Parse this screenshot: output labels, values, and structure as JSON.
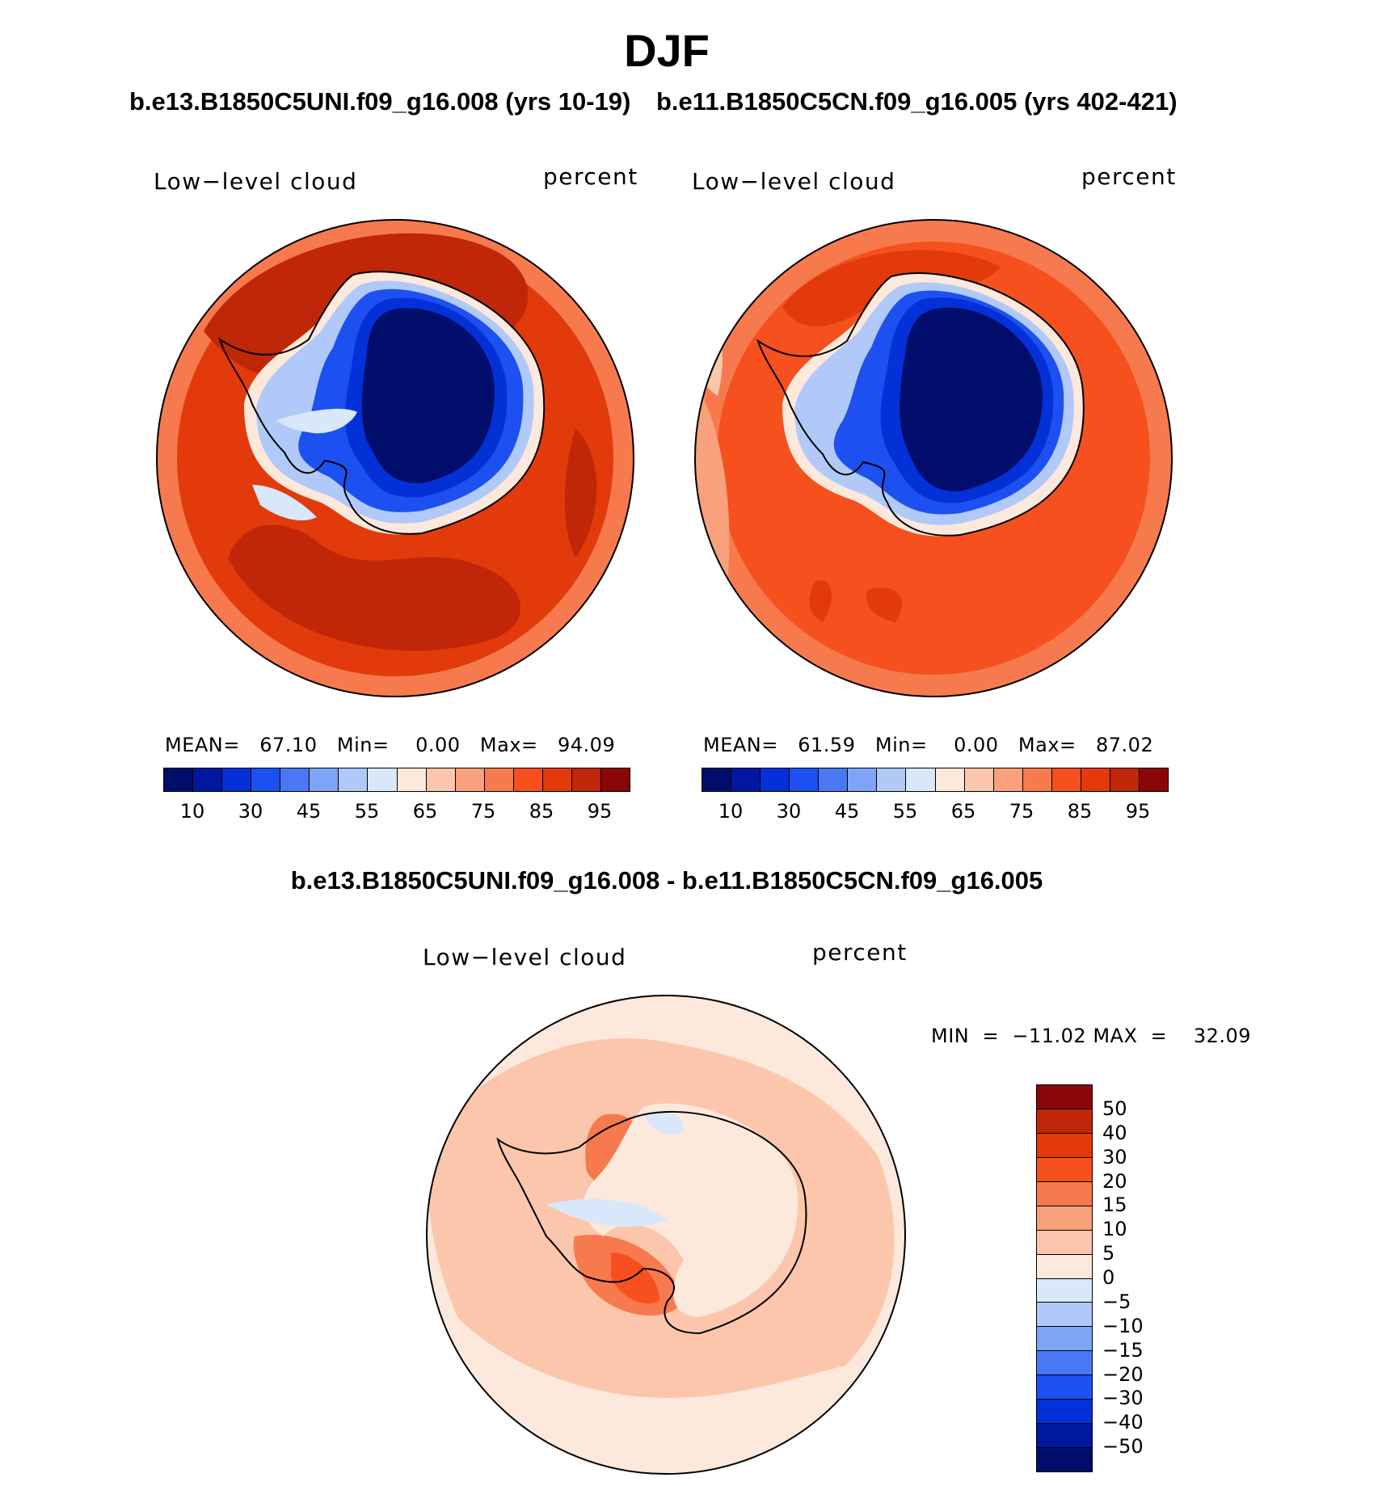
{
  "figure": {
    "title": "DJF",
    "variable_label": "Low−level cloud",
    "units_label": "percent"
  },
  "panels": [
    {
      "case_title": "b.e13.B1850C5UNI.f09_g16.008 (yrs 10-19)",
      "stats": {
        "mean": "67.10",
        "min": "0.00",
        "max": "94.09"
      },
      "colorbar": {
        "colors": [
          "#000d6b",
          "#0018a0",
          "#0430d8",
          "#1c50f0",
          "#4a78f5",
          "#7ea4f7",
          "#b0c9f8",
          "#d8e7f9",
          "#fde8dc",
          "#fbc6ac",
          "#f9a07c",
          "#f77a4e",
          "#f5501e",
          "#e23a0a",
          "#c02608",
          "#8a0707"
        ],
        "tick_labels": [
          "10",
          "30",
          "45",
          "55",
          "65",
          "75",
          "85",
          "95"
        ]
      }
    },
    {
      "case_title": "b.e11.B1850C5CN.f09_g16.005 (yrs 402-421)",
      "stats": {
        "mean": "61.59",
        "min": "0.00",
        "max": "87.02"
      },
      "colorbar": {
        "colors": [
          "#000d6b",
          "#0018a0",
          "#0430d8",
          "#1c50f0",
          "#4a78f5",
          "#7ea4f7",
          "#b0c9f8",
          "#d8e7f9",
          "#fde8dc",
          "#fbc6ac",
          "#f9a07c",
          "#f77a4e",
          "#f5501e",
          "#e23a0a",
          "#c02608",
          "#8a0707"
        ],
        "tick_labels": [
          "10",
          "30",
          "45",
          "55",
          "65",
          "75",
          "85",
          "95"
        ]
      }
    }
  ],
  "difference": {
    "title": "b.e13.B1850C5UNI.f09_g16.008 - b.e11.B1850C5CN.f09_g16.005",
    "min_label": "MIN",
    "max_label": "MAX",
    "min": "−11.02",
    "max": "32.09",
    "colorbar": {
      "colors_top_to_bottom": [
        "#8a0707",
        "#c02608",
        "#e23a0a",
        "#f5501e",
        "#f77a4e",
        "#f9a07c",
        "#fbc6ac",
        "#fde8dc",
        "#d8e7f9",
        "#b0c9f8",
        "#7ea4f7",
        "#4a78f5",
        "#1c50f0",
        "#0430d8",
        "#0018a0",
        "#000d6b"
      ],
      "tick_labels": [
        "50",
        "40",
        "30",
        "20",
        "15",
        "10",
        "5",
        "0",
        "−5",
        "−10",
        "−15",
        "−20",
        "−30",
        "−40",
        "−50"
      ]
    }
  }
}
